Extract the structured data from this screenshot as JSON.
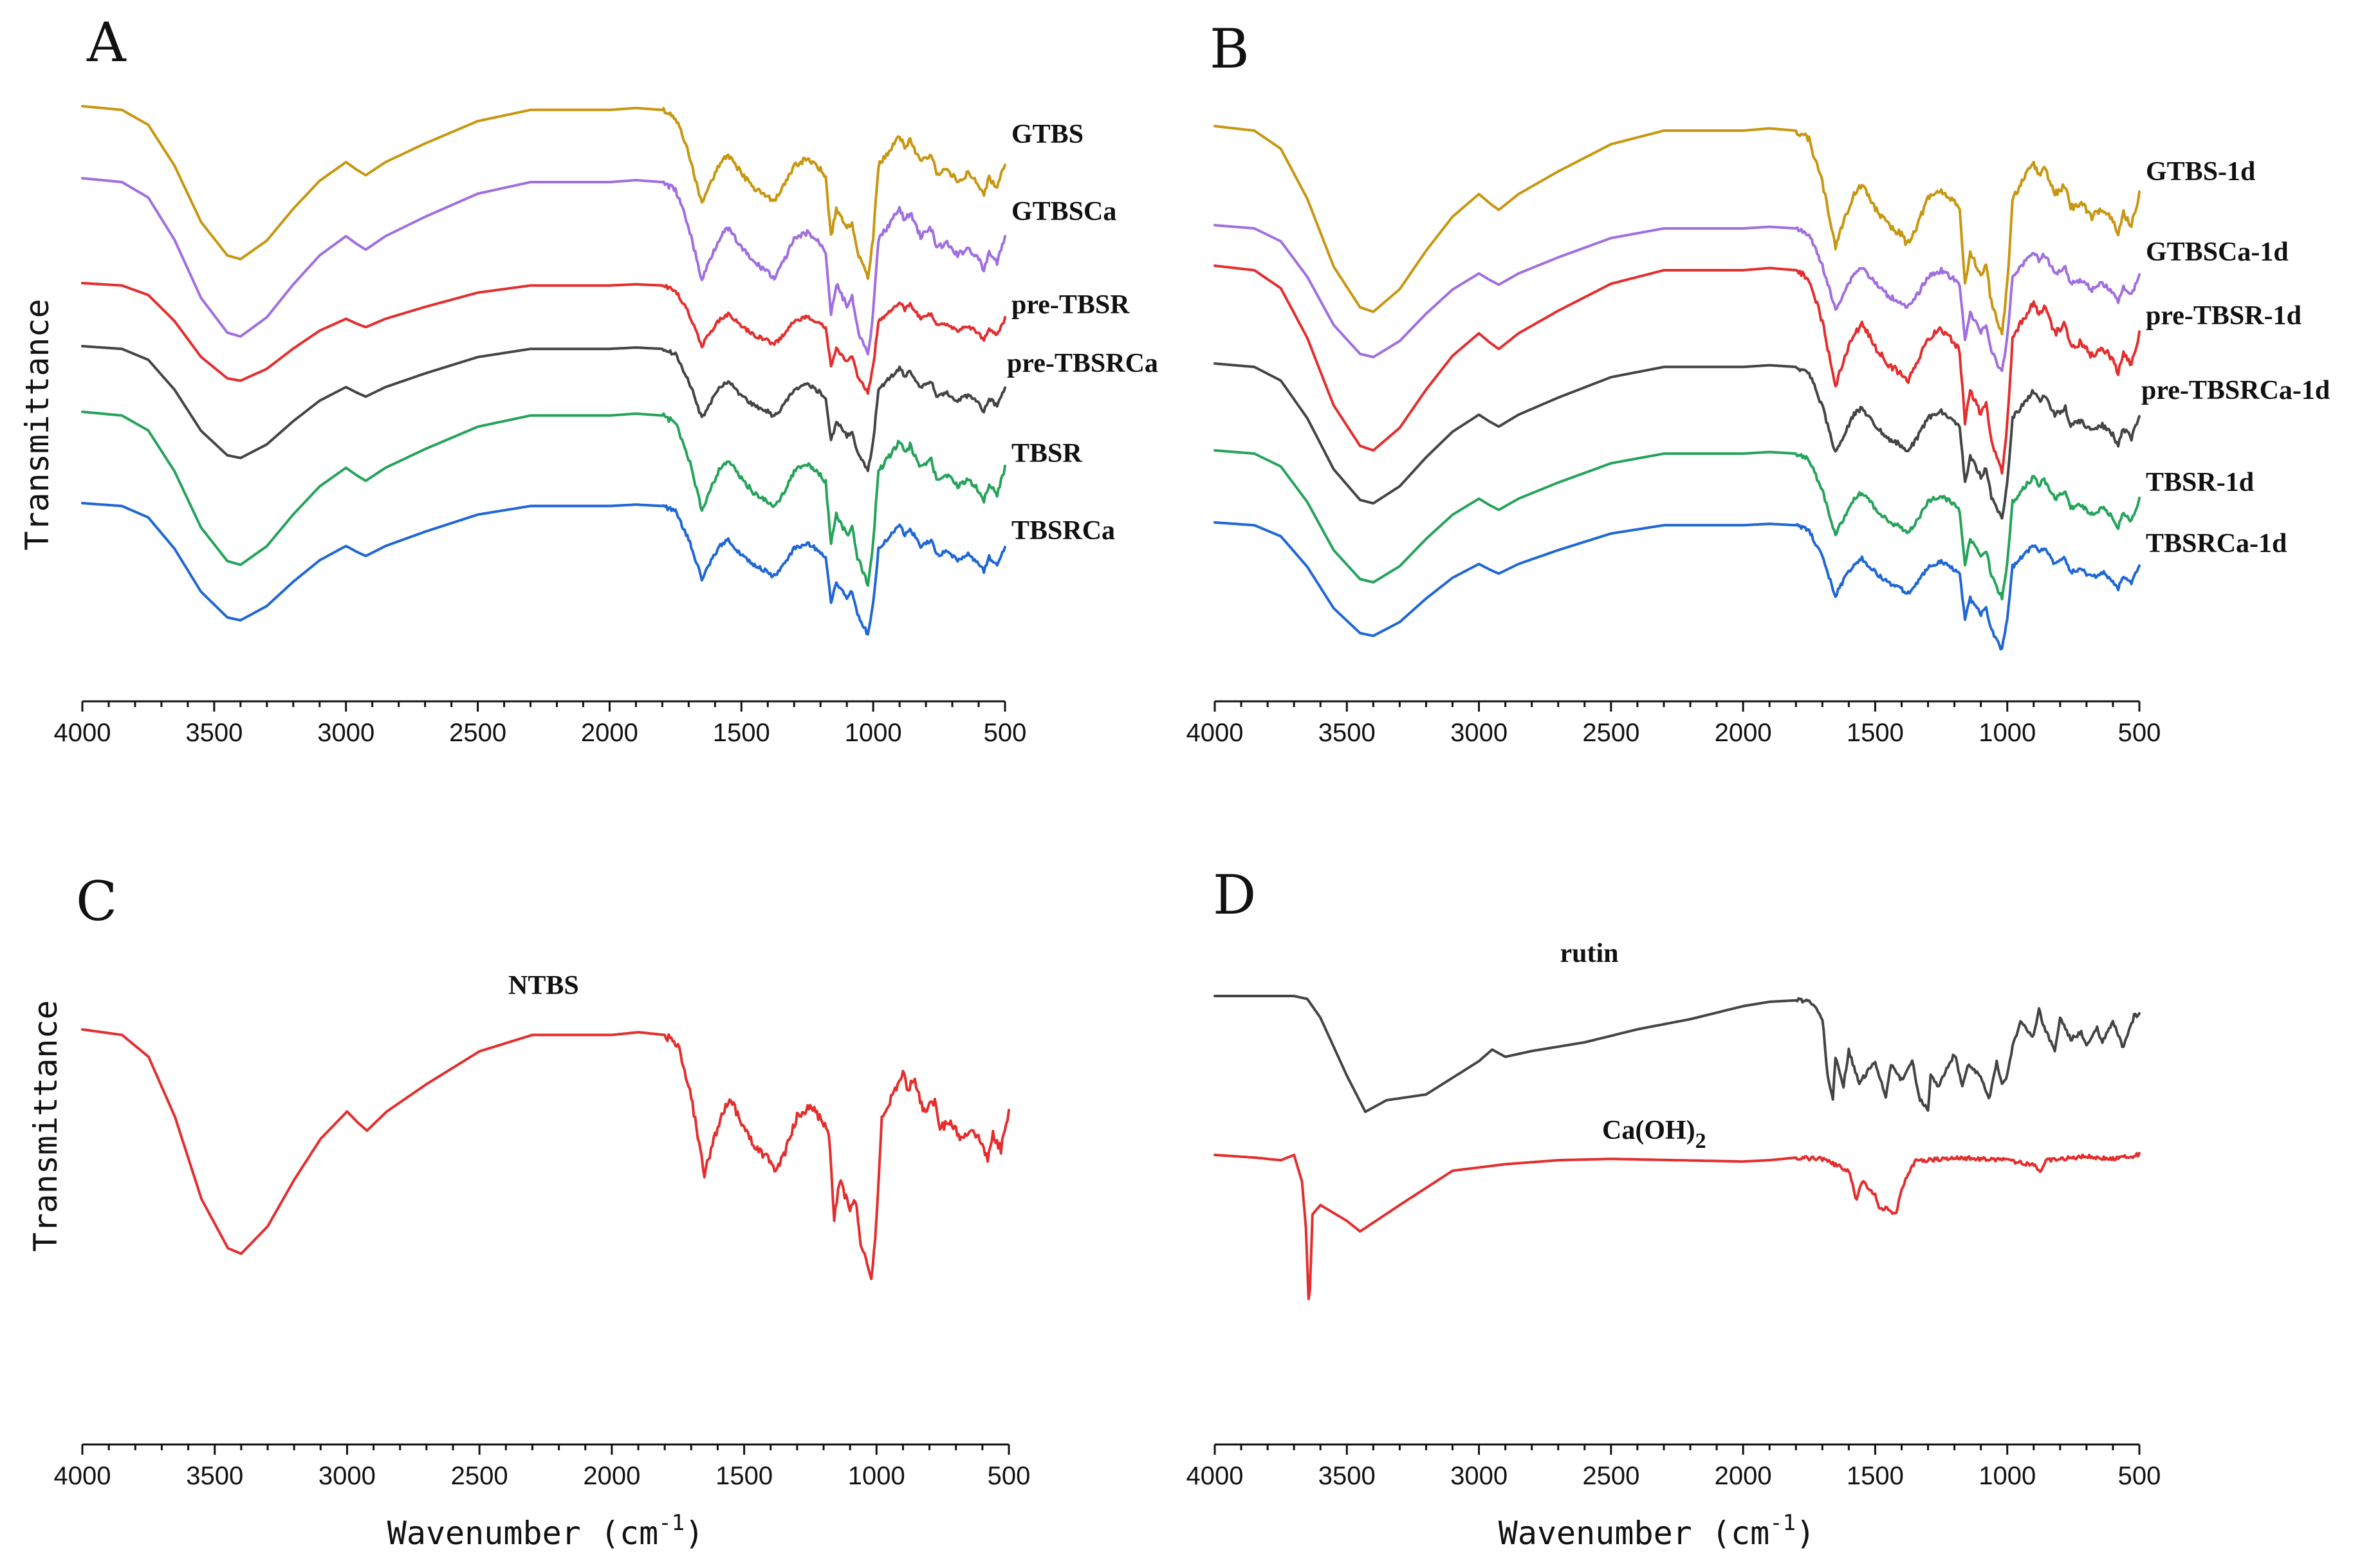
{
  "figure": {
    "ylabel": "Transmittance",
    "xlabel_main": "Wavenumber (cm",
    "xlabel_sup": "-1",
    "xlabel_close": ")"
  },
  "chart_data": [
    {
      "panel": "A",
      "type": "line",
      "xlim": [
        4000,
        500
      ],
      "x_ticks": [
        "4000",
        "3500",
        "3000",
        "2500",
        "2000",
        "1500",
        "1000",
        "500"
      ],
      "series": [
        {
          "name": "GTBS",
          "color": "#c8960f",
          "profile": "main"
        },
        {
          "name": "GTBSCa",
          "color": "#a06ee0",
          "profile": "main"
        },
        {
          "name": "pre-TBSR",
          "color": "#e42d2d",
          "profile": "main"
        },
        {
          "name": "pre-TBSRCa",
          "color": "#444444",
          "profile": "main"
        },
        {
          "name": "TBSR",
          "color": "#25a35a",
          "profile": "main"
        },
        {
          "name": "TBSRCa",
          "color": "#1f66d6",
          "profile": "main"
        }
      ]
    },
    {
      "panel": "B",
      "type": "line",
      "xlim": [
        4000,
        500
      ],
      "x_ticks": [
        "4000",
        "3500",
        "3000",
        "2500",
        "2000",
        "1500",
        "1000",
        "500"
      ],
      "series": [
        {
          "name": "GTBS-1d",
          "color": "#c8960f",
          "profile": "main"
        },
        {
          "name": "GTBSCa-1d",
          "color": "#a06ee0",
          "profile": "main"
        },
        {
          "name": "pre-TBSR-1d",
          "color": "#e42d2d",
          "profile": "main"
        },
        {
          "name": "pre-TBSRCa-1d",
          "color": "#444444",
          "profile": "main"
        },
        {
          "name": "TBSR-1d",
          "color": "#25a35a",
          "profile": "main"
        },
        {
          "name": "TBSRCa-1d",
          "color": "#1f66d6",
          "profile": "main"
        }
      ]
    },
    {
      "panel": "C",
      "type": "line",
      "xlim": [
        4000,
        500
      ],
      "x_ticks": [
        "4000",
        "3500",
        "3000",
        "2500",
        "2000",
        "1500",
        "1000",
        "500"
      ],
      "series": [
        {
          "name": "NTBS",
          "color": "#e42d2d",
          "profile": "main"
        }
      ]
    },
    {
      "panel": "D",
      "type": "line",
      "xlim": [
        4000,
        500
      ],
      "x_ticks": [
        "4000",
        "3500",
        "3000",
        "2500",
        "2000",
        "1500",
        "1000",
        "500"
      ],
      "series": [
        {
          "name": "rutin",
          "color": "#444444",
          "profile": "rutin"
        },
        {
          "name_main": "Ca(OH)",
          "name_sub": "2",
          "color": "#e42d2d",
          "profile": "caoh"
        }
      ]
    }
  ],
  "profiles": {
    "main": [
      [
        4000,
        0.0
      ],
      [
        3850,
        0.02
      ],
      [
        3750,
        0.1
      ],
      [
        3650,
        0.32
      ],
      [
        3550,
        0.62
      ],
      [
        3450,
        0.8
      ],
      [
        3400,
        0.82
      ],
      [
        3300,
        0.72
      ],
      [
        3200,
        0.55
      ],
      [
        3100,
        0.4
      ],
      [
        3000,
        0.3
      ],
      [
        2960,
        0.34
      ],
      [
        2925,
        0.37
      ],
      [
        2850,
        0.3
      ],
      [
        2700,
        0.2
      ],
      [
        2500,
        0.08
      ],
      [
        2300,
        0.02
      ],
      [
        2100,
        0.02
      ],
      [
        2000,
        0.02
      ],
      [
        1900,
        0.01
      ],
      [
        1800,
        0.02
      ],
      [
        1750,
        0.06
      ],
      [
        1700,
        0.25
      ],
      [
        1650,
        0.53
      ],
      [
        1620,
        0.42
      ],
      [
        1580,
        0.3
      ],
      [
        1550,
        0.26
      ],
      [
        1500,
        0.36
      ],
      [
        1450,
        0.44
      ],
      [
        1400,
        0.48
      ],
      [
        1380,
        0.52
      ],
      [
        1350,
        0.46
      ],
      [
        1300,
        0.32
      ],
      [
        1250,
        0.28
      ],
      [
        1200,
        0.34
      ],
      [
        1180,
        0.38
      ],
      [
        1160,
        0.7
      ],
      [
        1140,
        0.55
      ],
      [
        1100,
        0.66
      ],
      [
        1080,
        0.62
      ],
      [
        1060,
        0.78
      ],
      [
        1040,
        0.85
      ],
      [
        1020,
        0.92
      ],
      [
        1000,
        0.7
      ],
      [
        980,
        0.32
      ],
      [
        950,
        0.26
      ],
      [
        900,
        0.16
      ],
      [
        880,
        0.22
      ],
      [
        860,
        0.18
      ],
      [
        820,
        0.3
      ],
      [
        780,
        0.26
      ],
      [
        760,
        0.36
      ],
      [
        720,
        0.34
      ],
      [
        680,
        0.4
      ],
      [
        640,
        0.36
      ],
      [
        600,
        0.42
      ],
      [
        580,
        0.48
      ],
      [
        560,
        0.38
      ],
      [
        530,
        0.44
      ],
      [
        500,
        0.3
      ]
    ],
    "rutin": [
      [
        4000,
        0.0
      ],
      [
        3700,
        0.0
      ],
      [
        3650,
        0.02
      ],
      [
        3600,
        0.15
      ],
      [
        3500,
        0.55
      ],
      [
        3430,
        0.8
      ],
      [
        3350,
        0.72
      ],
      [
        3200,
        0.68
      ],
      [
        3000,
        0.45
      ],
      [
        2950,
        0.37
      ],
      [
        2900,
        0.42
      ],
      [
        2800,
        0.38
      ],
      [
        2600,
        0.32
      ],
      [
        2400,
        0.23
      ],
      [
        2200,
        0.16
      ],
      [
        2000,
        0.07
      ],
      [
        1900,
        0.04
      ],
      [
        1800,
        0.03
      ],
      [
        1750,
        0.03
      ],
      [
        1700,
        0.15
      ],
      [
        1680,
        0.55
      ],
      [
        1660,
        0.7
      ],
      [
        1650,
        0.42
      ],
      [
        1620,
        0.62
      ],
      [
        1600,
        0.38
      ],
      [
        1560,
        0.6
      ],
      [
        1500,
        0.45
      ],
      [
        1460,
        0.7
      ],
      [
        1440,
        0.48
      ],
      [
        1400,
        0.58
      ],
      [
        1360,
        0.45
      ],
      [
        1330,
        0.72
      ],
      [
        1300,
        0.78
      ],
      [
        1290,
        0.55
      ],
      [
        1260,
        0.62
      ],
      [
        1200,
        0.4
      ],
      [
        1170,
        0.62
      ],
      [
        1150,
        0.48
      ],
      [
        1100,
        0.55
      ],
      [
        1070,
        0.72
      ],
      [
        1040,
        0.45
      ],
      [
        1020,
        0.62
      ],
      [
        1000,
        0.55
      ],
      [
        980,
        0.35
      ],
      [
        950,
        0.18
      ],
      [
        900,
        0.28
      ],
      [
        880,
        0.1
      ],
      [
        860,
        0.22
      ],
      [
        820,
        0.38
      ],
      [
        800,
        0.15
      ],
      [
        760,
        0.3
      ],
      [
        720,
        0.25
      ],
      [
        700,
        0.35
      ],
      [
        660,
        0.22
      ],
      [
        640,
        0.32
      ],
      [
        600,
        0.18
      ],
      [
        560,
        0.36
      ],
      [
        520,
        0.14
      ],
      [
        500,
        0.12
      ]
    ],
    "caoh": [
      [
        4000,
        0.0
      ],
      [
        3850,
        0.02
      ],
      [
        3750,
        0.04
      ],
      [
        3700,
        0.0
      ],
      [
        3670,
        0.2
      ],
      [
        3655,
        0.55
      ],
      [
        3643,
        1.2
      ],
      [
        3630,
        0.45
      ],
      [
        3600,
        0.38
      ],
      [
        3500,
        0.5
      ],
      [
        3450,
        0.58
      ],
      [
        3300,
        0.38
      ],
      [
        3100,
        0.12
      ],
      [
        2900,
        0.07
      ],
      [
        2700,
        0.04
      ],
      [
        2500,
        0.03
      ],
      [
        2000,
        0.05
      ],
      [
        1900,
        0.04
      ],
      [
        1800,
        0.02
      ],
      [
        1700,
        0.03
      ],
      [
        1600,
        0.12
      ],
      [
        1570,
        0.35
      ],
      [
        1550,
        0.2
      ],
      [
        1500,
        0.3
      ],
      [
        1480,
        0.42
      ],
      [
        1460,
        0.4
      ],
      [
        1420,
        0.45
      ],
      [
        1400,
        0.25
      ],
      [
        1350,
        0.05
      ],
      [
        1200,
        0.02
      ],
      [
        1100,
        0.03
      ],
      [
        1000,
        0.04
      ],
      [
        900,
        0.08
      ],
      [
        875,
        0.12
      ],
      [
        850,
        0.04
      ],
      [
        700,
        0.01
      ],
      [
        600,
        0.03
      ],
      [
        500,
        0.0
      ]
    ]
  }
}
